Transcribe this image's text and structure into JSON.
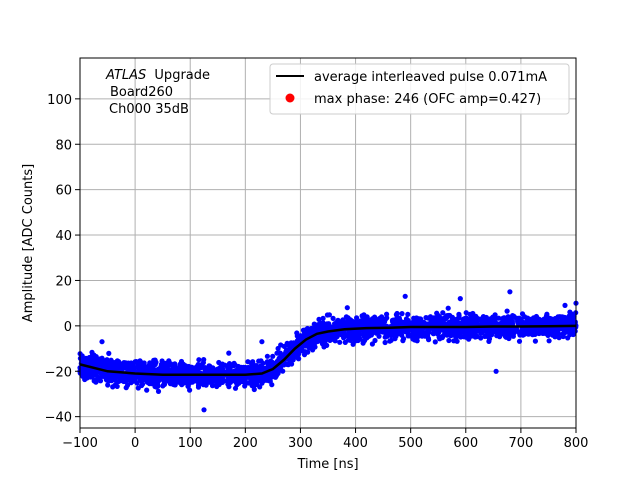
{
  "chart_data": {
    "type": "scatter",
    "xlabel": "Time [ns]",
    "ylabel": "Amplitude [ADC Counts]",
    "xlim": [
      -100,
      800
    ],
    "ylim": [
      -45,
      118
    ],
    "grid": true,
    "legend_position": "top-right",
    "x_ticks": [
      -100,
      0,
      100,
      200,
      300,
      400,
      500,
      600,
      700,
      800
    ],
    "y_ticks": [
      -40,
      -20,
      0,
      20,
      40,
      60,
      80,
      100
    ],
    "x_tick_labels": [
      "−100",
      "0",
      "100",
      "200",
      "300",
      "400",
      "500",
      "600",
      "700",
      "800"
    ],
    "y_tick_labels": [
      "−40",
      "−20",
      "0",
      "20",
      "40",
      "60",
      "80",
      "100"
    ],
    "annotation": {
      "atlas": "ATLAS",
      "upgrade": "Upgrade",
      "board": "Board260",
      "channel": "Ch000 35dB"
    },
    "series": [
      {
        "name": "average interleaved pulse 0.071mA",
        "kind": "line",
        "color": "#000000",
        "x": [
          -100,
          -50,
          0,
          50,
          100,
          150,
          200,
          230,
          250,
          270,
          290,
          310,
          330,
          350,
          380,
          420,
          460,
          500,
          550,
          600,
          650,
          700,
          750,
          800
        ],
        "y": [
          -17,
          -20,
          -21,
          -21.5,
          -21.5,
          -21.5,
          -21.5,
          -21,
          -19,
          -15,
          -10,
          -6,
          -3.5,
          -2.5,
          -1.5,
          -1,
          -0.8,
          -0.5,
          -0.5,
          -0.5,
          -0.3,
          -0.3,
          -0.2,
          0
        ]
      },
      {
        "name": "blue scatter samples",
        "kind": "scatter",
        "color": "#0000ff",
        "spread": 5,
        "outliers": [
          {
            "x": 125,
            "y": -37
          },
          {
            "x": 180,
            "y": -17
          },
          {
            "x": 170,
            "y": -12
          },
          {
            "x": 230,
            "y": -7
          },
          {
            "x": 490,
            "y": 13
          },
          {
            "x": 590,
            "y": 12
          },
          {
            "x": 655,
            "y": -20
          },
          {
            "x": 680,
            "y": 15
          },
          {
            "x": 780,
            "y": 9
          },
          {
            "x": 385,
            "y": 8
          },
          {
            "x": -60,
            "y": -7
          },
          {
            "x": 800,
            "y": 10
          }
        ]
      },
      {
        "name": "max phase: 246 (OFC amp=0.427)",
        "kind": "marker",
        "color": "#ff0000"
      }
    ]
  },
  "legend": {
    "line_label": "average interleaved pulse 0.071mA",
    "marker_label": "max phase: 246 (OFC amp=0.427)"
  }
}
